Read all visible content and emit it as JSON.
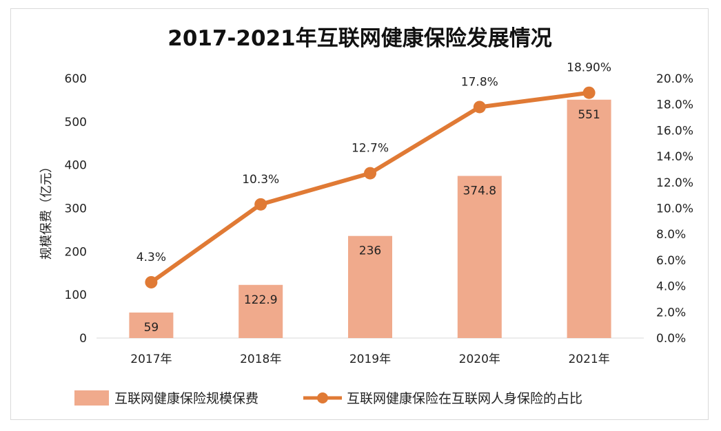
{
  "chart_data": {
    "type": "bar+line",
    "title": "2017-2021年互联网健康保险发展情况",
    "categories": [
      "2017年",
      "2018年",
      "2019年",
      "2020年",
      "2021年"
    ],
    "ylabel": "规模保费（亿元）",
    "ylim": [
      0,
      600
    ],
    "yticks": [
      "0",
      "100",
      "200",
      "300",
      "400",
      "500",
      "600"
    ],
    "y2lim": [
      0,
      20
    ],
    "y2ticks": [
      "0.0%",
      "2.0%",
      "4.0%",
      "6.0%",
      "8.0%",
      "10.0%",
      "12.0%",
      "14.0%",
      "16.0%",
      "18.0%",
      "20.0%"
    ],
    "series": [
      {
        "name": "互联网健康保险规模保费",
        "kind": "bar",
        "axis": "left",
        "values": [
          59,
          122.9,
          236,
          374.8,
          551
        ],
        "labels": [
          "59",
          "122.9",
          "236",
          "374.8",
          "551"
        ],
        "color": "#f0aa8c"
      },
      {
        "name": "互联网健康保险在互联网人身保险的占比",
        "kind": "line",
        "axis": "right",
        "values": [
          4.3,
          10.3,
          12.7,
          17.8,
          18.9
        ],
        "labels": [
          "4.3%",
          "10.3%",
          "12.7%",
          "17.8%",
          "18.90%"
        ],
        "color": "#e07a35"
      }
    ],
    "legend_position": "bottom",
    "grid": false
  }
}
